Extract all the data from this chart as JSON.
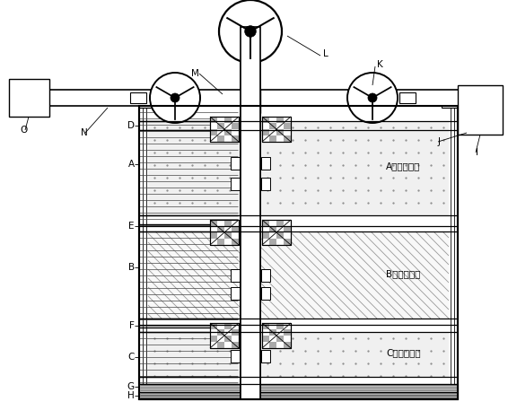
{
  "bg_color": "#ffffff",
  "fig_width": 5.66,
  "fig_height": 4.67,
  "layer_labels": {
    "A_layer": [
      0.735,
      0.6,
      "A层（气层）"
    ],
    "B_layer": [
      0.735,
      0.43,
      "B层（气层）"
    ],
    "C_layer": [
      0.735,
      0.27,
      "C层（气层）"
    ]
  }
}
